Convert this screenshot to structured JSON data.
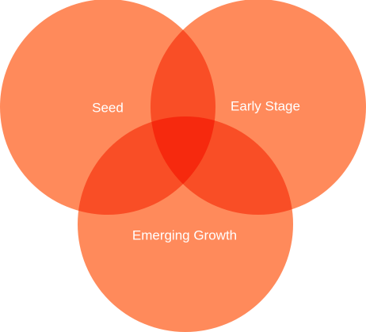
{
  "diagram": {
    "type": "venn",
    "sets": [
      {
        "label": "Seed"
      },
      {
        "label": "Early Stage"
      },
      {
        "label": "Emerging Growth"
      }
    ],
    "colors": {
      "circle": "#FF8A5B",
      "pairwise_overlap": "#F94E26",
      "triple_overlap": "#F6290E"
    }
  }
}
